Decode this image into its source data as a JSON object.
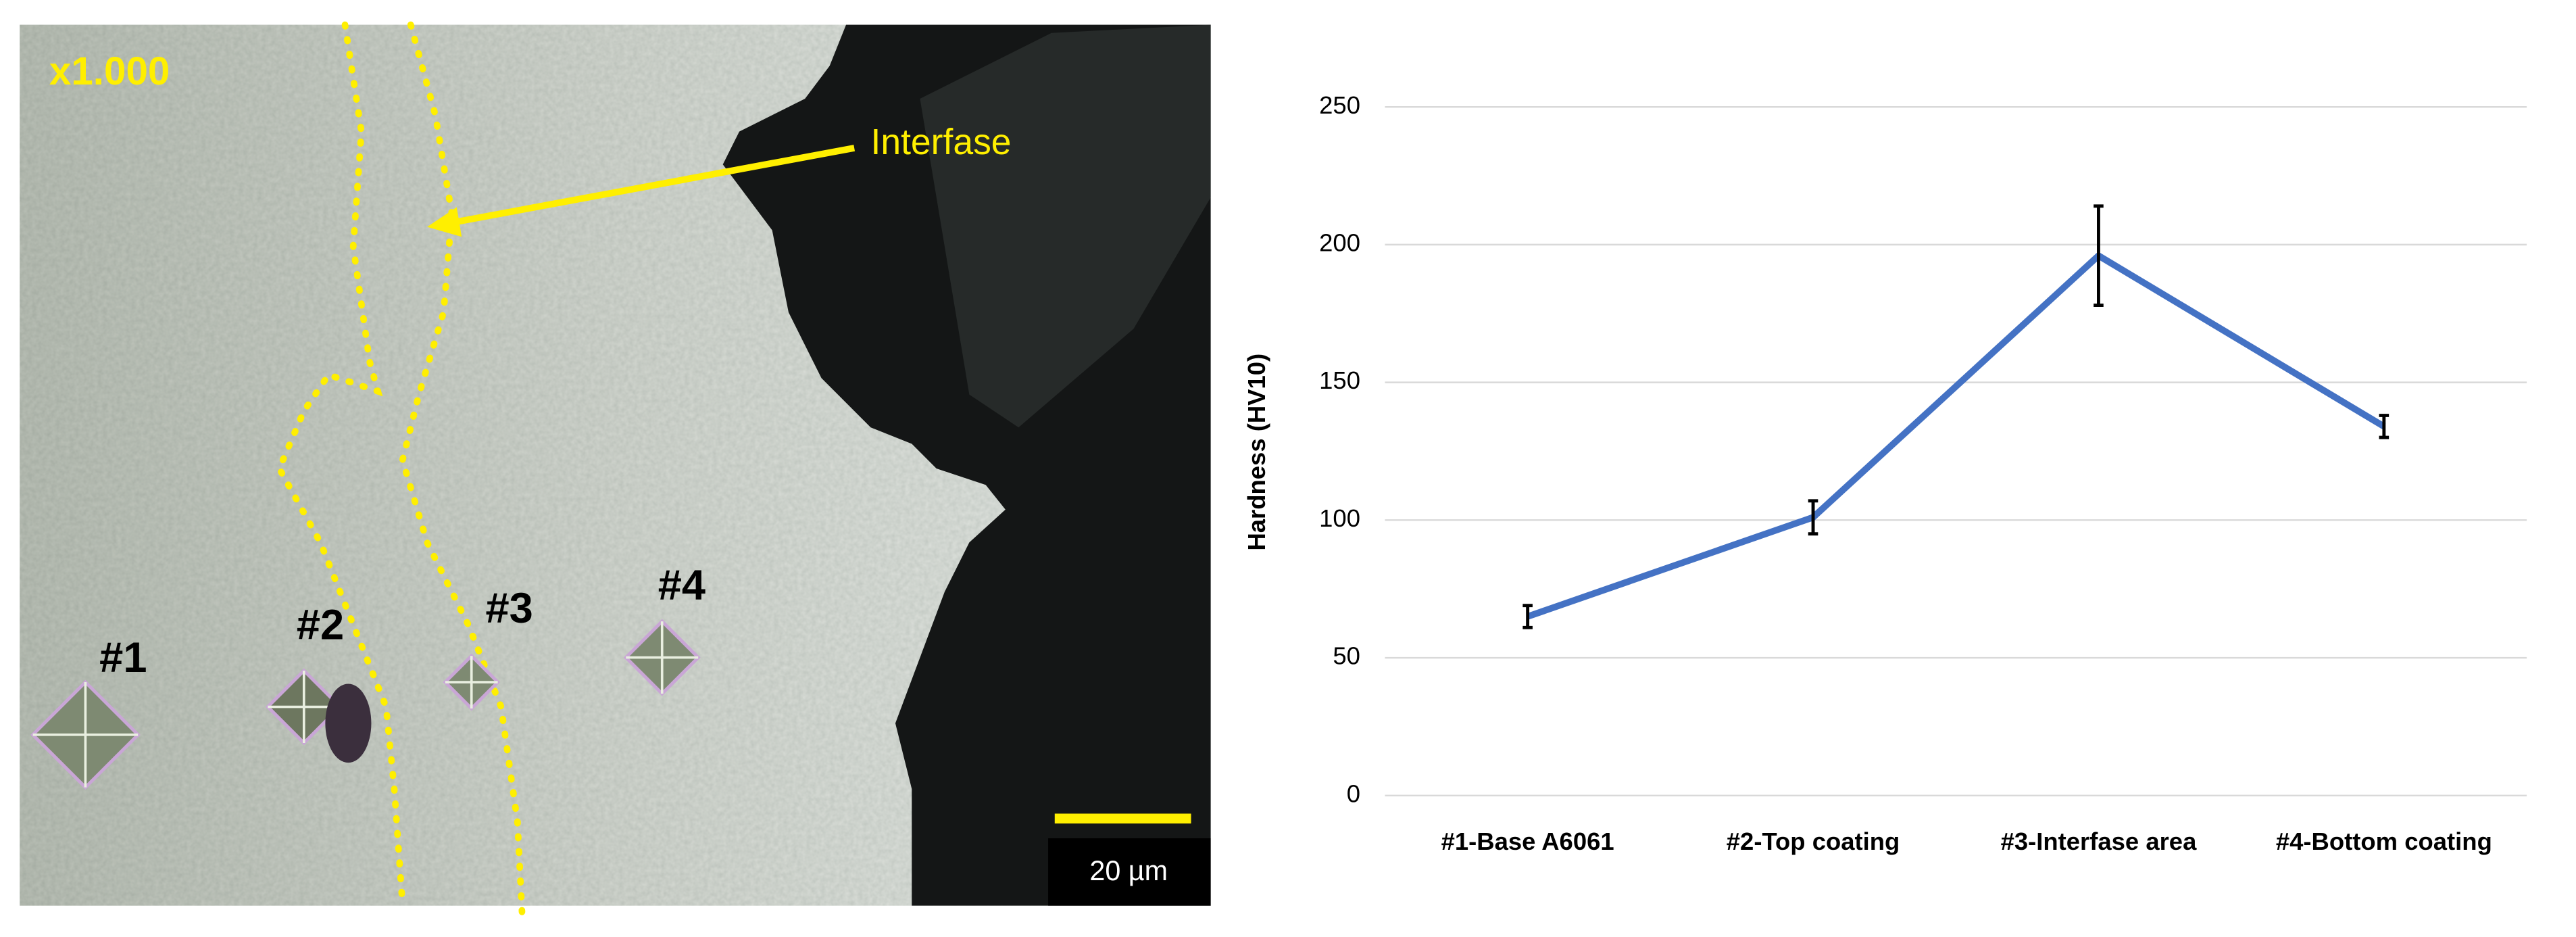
{
  "micrograph": {
    "magnification": "x1.000",
    "annotation": "Interfase",
    "points": [
      "#1",
      "#2",
      "#3",
      "#4"
    ],
    "scale_bar": "20 µm"
  },
  "chart_data": {
    "type": "line",
    "y_label": "Hardness (HV10)",
    "categories": [
      "#1-Base A6061",
      "#2-Top coating",
      "#3-Interfase area",
      "#4-Bottom coating"
    ],
    "values": [
      65,
      101,
      196,
      134
    ],
    "errors": [
      4,
      6,
      18,
      4
    ],
    "color": "#4472c4",
    "ylim": [
      0,
      250
    ],
    "yticks": [
      0,
      50,
      100,
      150,
      200,
      250
    ],
    "grid": true
  }
}
